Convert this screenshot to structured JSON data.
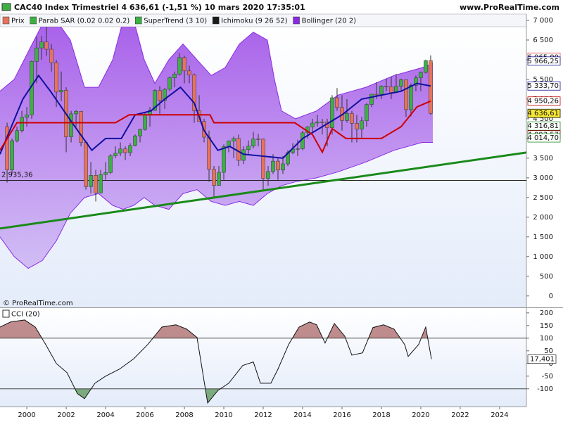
{
  "header": {
    "title": "CAC40 Index Trimestriel 4 636,61 (-1,51 %) 10 mars 2020 17:35:01",
    "site": "www.ProRealTime.com"
  },
  "chart_data": [
    {
      "type": "candlestick",
      "copyright": "© ProRealTime.com",
      "legend": [
        {
          "name": "Prix",
          "color": "#e8735a"
        },
        {
          "name": "Parab SAR (0.02 0.02 0.2)",
          "color": "#3cb043"
        },
        {
          "name": "SuperTrend (3 10)",
          "color": "#3cb043"
        },
        {
          "name": "Ichimoku (9 26 52)",
          "color": "#1a1a1a"
        },
        {
          "name": "Bollinger (20 2)",
          "color": "#8a2be2"
        }
      ],
      "up_color": "#3cb043",
      "down_color": "#e8735a",
      "x": [
        1999,
        1999.25,
        1999.5,
        1999.75,
        2000,
        2000.25,
        2000.5,
        2000.75,
        2001,
        2001.25,
        2001.5,
        2001.75,
        2002,
        2002.25,
        2002.5,
        2002.75,
        2003,
        2003.25,
        2003.5,
        2003.75,
        2004,
        2004.25,
        2004.5,
        2004.75,
        2005,
        2005.25,
        2005.5,
        2005.75,
        2006,
        2006.25,
        2006.5,
        2006.75,
        2007,
        2007.25,
        2007.5,
        2007.75,
        2008,
        2008.25,
        2008.5,
        2008.75,
        2009,
        2009.25,
        2009.5,
        2009.75,
        2010,
        2010.25,
        2010.5,
        2010.75,
        2011,
        2011.25,
        2011.5,
        2011.75,
        2012,
        2012.25,
        2012.5,
        2012.75,
        2013,
        2013.25,
        2013.5,
        2013.75,
        2014,
        2014.25,
        2014.5,
        2014.75,
        2015,
        2015.25,
        2015.5,
        2015.75,
        2016,
        2016.25,
        2016.5,
        2016.75,
        2017,
        2017.25,
        2017.5,
        2017.75,
        2018,
        2018.25,
        2018.5,
        2018.75,
        2019,
        2019.25,
        2019.5,
        2019.75,
        2020,
        2020.25,
        2020.5
      ],
      "open": [
        4300,
        3200,
        3943,
        4200,
        4536,
        4600,
        5958,
        6300,
        6450,
        6266,
        5926,
        5180,
        5225,
        4040,
        4625,
        4688,
        3898,
        2777,
        3064,
        2618,
        3084,
        3135,
        3558,
        3625,
        3733,
        3641,
        3821,
        4067,
        4229,
        4600,
        4715,
        5220,
        4965,
        5250,
        5542,
        5634,
        6055,
        5716,
        5614,
        4707,
        4434,
        4033,
        3218,
        2807,
        3140,
        3795,
        3936,
        4000,
        3443,
        3715,
        3805,
        3989,
        3982,
        2982,
        3160,
        3424,
        3197,
        3355,
        3641,
        3731,
        3739,
        4143,
        4296,
        4392,
        4423,
        4416,
        4273,
        5034,
        4790,
        4455,
        4637,
        4385,
        4237,
        4448,
        4862,
        5123,
        5121,
        5330,
        5313,
        5167,
        5324,
        5493,
        4731,
        5351,
        5539,
        5678,
        5978
      ],
      "high": [
        4400,
        4000,
        4300,
        4700,
        4800,
        5980,
        6580,
        6600,
        6940,
        6400,
        5999,
        5700,
        5300,
        4700,
        4720,
        4700,
        3950,
        3400,
        3200,
        3200,
        3400,
        3600,
        3800,
        3900,
        3800,
        3880,
        4100,
        4250,
        4650,
        4800,
        5250,
        5330,
        5280,
        5570,
        5700,
        6170,
        6100,
        5850,
        5650,
        5100,
        4500,
        4200,
        3300,
        3300,
        3850,
        3950,
        4050,
        4100,
        3800,
        3950,
        4170,
        4120,
        4000,
        3300,
        3600,
        3500,
        3550,
        3700,
        3880,
        3970,
        4200,
        4320,
        4500,
        4600,
        4500,
        4500,
        5100,
        5280,
        5100,
        5000,
        4700,
        4600,
        4550,
        4900,
        5130,
        5430,
        5350,
        5520,
        5570,
        5640,
        5520,
        5500,
        5400,
        5600,
        5700,
        6000,
        6111
      ],
      "low": [
        2880,
        3100,
        3900,
        4150,
        4300,
        4500,
        5400,
        6000,
        6100,
        5700,
        4800,
        4950,
        3650,
        3900,
        4300,
        3800,
        2700,
        2600,
        2400,
        2600,
        2950,
        3100,
        3500,
        3550,
        3450,
        3550,
        3800,
        3900,
        4200,
        4300,
        4700,
        4600,
        4750,
        5200,
        5300,
        5600,
        5400,
        5400,
        4400,
        4450,
        3900,
        2900,
        2470,
        2800,
        2950,
        3650,
        3500,
        3300,
        3350,
        3600,
        3750,
        3800,
        2700,
        2800,
        3100,
        2950,
        3100,
        3300,
        3600,
        3550,
        3700,
        4000,
        4150,
        4300,
        4100,
        3800,
        4100,
        4700,
        4200,
        4400,
        3900,
        3900,
        4000,
        4300,
        4800,
        5000,
        5000,
        5200,
        5000,
        5150,
        5200,
        4550,
        4560,
        5200,
        5200,
        5650,
        4600
      ],
      "close": [
        3200,
        3943,
        4200,
        4536,
        4600,
        5958,
        6300,
        6450,
        6266,
        5926,
        5180,
        5225,
        4040,
        4625,
        4688,
        3898,
        2777,
        3064,
        2618,
        3084,
        3135,
        3558,
        3625,
        3733,
        3641,
        3821,
        4067,
        4229,
        4600,
        4715,
        5220,
        4965,
        5250,
        5542,
        5634,
        6055,
        5716,
        5614,
        4707,
        4434,
        4033,
        3218,
        2807,
        3140,
        3795,
        3936,
        4000,
        3443,
        3715,
        3805,
        3989,
        3982,
        2982,
        3160,
        3424,
        3197,
        3355,
        3641,
        3731,
        3739,
        4143,
        4296,
        4392,
        4423,
        4416,
        4273,
        5034,
        4790,
        4455,
        4637,
        4385,
        4237,
        4448,
        4862,
        5123,
        5121,
        5330,
        5313,
        5167,
        5324,
        5493,
        4731,
        5351,
        5539,
        5678,
        5978,
        4637
      ],
      "bands": {
        "color": "#8a2be2",
        "x": [
          1998.64,
          1999.36,
          2000.07,
          2000.79,
          2001.5,
          2002.21,
          2002.93,
          2003.64,
          2004.36,
          2004.89,
          2005.43,
          2005.96,
          2006.5,
          2007.21,
          2007.93,
          2008.64,
          2009.36,
          2010.07,
          2010.79,
          2011.5,
          2012.21,
          2012.57,
          2012.93,
          2013.64,
          2014.71,
          2015.79,
          2017.21,
          2018.64,
          2020.07,
          2020.61
        ],
        "upper": [
          5200,
          5500,
          6200,
          6900,
          7000,
          6500,
          5300,
          5300,
          6000,
          7000,
          7000,
          6000,
          5400,
          6000,
          6400,
          6000,
          5600,
          5800,
          6400,
          6700,
          6500,
          5500,
          4700,
          4500,
          4700,
          5100,
          5300,
          5600,
          5800,
          5900
        ],
        "lower": [
          1500,
          1000,
          700,
          900,
          1400,
          2100,
          2500,
          2600,
          2300,
          2200,
          2300,
          2500,
          2300,
          2200,
          2600,
          2700,
          2400,
          2300,
          2400,
          2300,
          2600,
          2700,
          2800,
          2900,
          3000,
          3150,
          3400,
          3700,
          3900,
          3900
        ]
      },
      "lines": [
        {
          "color": "#1010a0",
          "x": [
            1998.64,
            1999.3,
            1999.8,
            2000.6,
            2001.2,
            2002.3,
            2003.3,
            2004.0,
            2004.8,
            2005.5,
            2006.3,
            2007.0,
            2007.8,
            2008.5,
            2009.0,
            2009.7,
            2010.3,
            2011.0,
            2012.0,
            2013.0,
            2014.0,
            2015.0,
            2016.0,
            2017.0,
            2018.0,
            2019.0,
            2019.8,
            2020.5
          ],
          "values": [
            3600,
            4400,
            5000,
            5600,
            5200,
            4400,
            3700,
            4000,
            4000,
            4600,
            4700,
            5000,
            5300,
            4900,
            4200,
            3700,
            3800,
            3600,
            3550,
            3500,
            4000,
            4300,
            4600,
            5000,
            5100,
            5200,
            5400,
            5333.7
          ]
        },
        {
          "color": "#cc0000",
          "x": [
            1998.64,
            1999.5,
            2004.5,
            2005.2,
            2009.3,
            2009.5,
            2013.6,
            2014.5,
            2015.0,
            2015.5,
            2016.2,
            2018.0,
            2019.0,
            2019.8,
            2020.5
          ],
          "values": [
            3700,
            4400,
            4400,
            4600,
            4600,
            4400,
            4400,
            4100,
            3650,
            4250,
            4000,
            4000,
            4300,
            4800,
            4950.26
          ]
        },
        {
          "color": "#1a8a1a",
          "x": [
            1998.64,
            2025.36
          ],
          "values": [
            1714,
            3643
          ]
        }
      ],
      "hline": {
        "value": 2935.36,
        "label": "2 935,36"
      },
      "price_labels": [
        {
          "value": 6065,
          "label": "6 065,00",
          "color": "#e05050",
          "fill": "#ffffff"
        },
        {
          "value": 5966.25,
          "label": "5 966,25",
          "color": "#1a1a8a",
          "fill": "#ffffff"
        },
        {
          "value": 5333.7,
          "label": "5 333,70",
          "color": "#1a1a8a",
          "fill": "#ffffff"
        },
        {
          "value": 4950.26,
          "label": "4 950,26",
          "color": "#c00000",
          "fill": "#ffffff"
        },
        {
          "value": 4636.61,
          "label": "4 636,61",
          "color": "#111111",
          "fill": "#f5e634"
        },
        {
          "value": 4316.81,
          "label": "4 316,81",
          "color": "#2a8a2a",
          "fill": "#ffffff"
        },
        {
          "value": 4093.57,
          "label": "4 093,57",
          "color": "#8b0000",
          "fill": "#ffffff"
        },
        {
          "value": 4014.7,
          "label": "4 014,70",
          "color": "#2a8a2a",
          "fill": "#ffffff"
        }
      ],
      "xlim": [
        1998.64,
        2025.36
      ],
      "xticks": [
        2000,
        2002,
        2004,
        2006,
        2008,
        2010,
        2012,
        2014,
        2016,
        2018,
        2020,
        2022,
        2024
      ],
      "ylim": [
        -290,
        7160
      ],
      "yticks": [
        {
          "value": 7000,
          "label": "7 000"
        },
        {
          "value": 6500,
          "label": "6 500"
        },
        {
          "value": 6000,
          "label": "6 000"
        },
        {
          "value": 5500,
          "label": "5 500"
        },
        {
          "value": 5000,
          "label": "5 000"
        },
        {
          "value": 4500,
          "label": "4 500"
        },
        {
          "value": 4000,
          "label": "4 000"
        },
        {
          "value": 3500,
          "label": "3 500"
        },
        {
          "value": 3000,
          "label": "3 000"
        },
        {
          "value": 2500,
          "label": "2 500"
        },
        {
          "value": 2000,
          "label": "2 000"
        },
        {
          "value": 1500,
          "label": "1 500"
        },
        {
          "value": 1000,
          "label": "1 000"
        },
        500,
        0
      ]
    },
    {
      "type": "line",
      "title": "CCI (20)",
      "color": "#111111",
      "x": [
        1998.64,
        1999.18,
        1999.89,
        2000.43,
        2000.96,
        2001.5,
        2002.04,
        2002.57,
        2002.93,
        2003.46,
        2004.0,
        2004.71,
        2005.43,
        2006.14,
        2006.86,
        2007.57,
        2008.11,
        2008.64,
        2009.18,
        2009.71,
        2010.25,
        2010.96,
        2011.5,
        2011.86,
        2012.39,
        2012.75,
        2013.29,
        2013.82,
        2014.36,
        2014.71,
        2015.14,
        2015.61,
        2016.14,
        2016.5,
        2017.04,
        2017.57,
        2018.11,
        2018.64,
        2019.18,
        2019.36,
        2019.89,
        2020.25,
        2020.54
      ],
      "values": [
        144,
        164,
        172,
        144,
        75,
        0,
        -36,
        -119,
        -139,
        -78,
        -50,
        -22,
        19,
        75,
        144,
        153,
        136,
        103,
        -156,
        -106,
        -78,
        -8,
        6,
        -78,
        -78,
        -22,
        75,
        144,
        164,
        153,
        81,
        158,
        108,
        33,
        42,
        142,
        153,
        136,
        75,
        28,
        75,
        144,
        17.401
      ],
      "last_label": {
        "value": 17.401,
        "label": "17,401"
      },
      "levels": [
        100,
        -100
      ],
      "upper_fill": "#b07070",
      "lower_fill": "#5f9a5f",
      "ylim": [
        -170,
        219
      ],
      "yticks": [
        200,
        150,
        100,
        50,
        0,
        -50,
        -100
      ]
    }
  ]
}
